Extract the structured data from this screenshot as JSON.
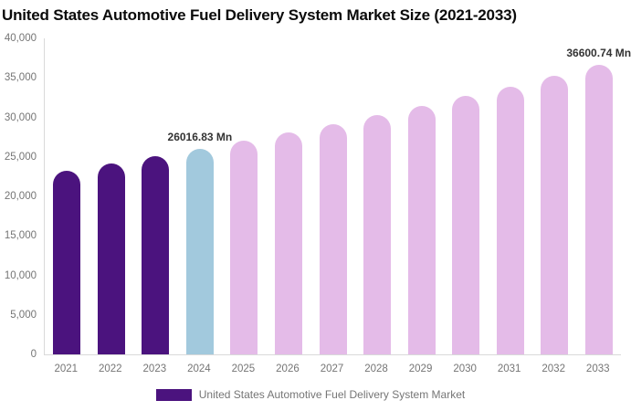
{
  "title": "United States Automotive Fuel Delivery System Market Size (2021-2033)",
  "legend": {
    "label": "United States Automotive Fuel Delivery System Market",
    "swatch_color": "#4B137E"
  },
  "colors": {
    "historical_bar": "#4B137E",
    "current_year_bar": "#A2C9DD",
    "forecast_bar": "#E4BBE8",
    "axis_line": "#D9D9D9",
    "axis_text": "#757575",
    "value_label_text": "#333333",
    "title_text": "#0B0B0B"
  },
  "chart_data": {
    "type": "bar",
    "title": "United States Automotive Fuel Delivery System Market Size (2021-2033)",
    "unit": "Mn",
    "categories": [
      "2021",
      "2022",
      "2023",
      "2024",
      "2025",
      "2026",
      "2027",
      "2028",
      "2029",
      "2030",
      "2031",
      "2032",
      "2033"
    ],
    "values": [
      23219,
      24116,
      25048,
      26016.83,
      27023,
      28067,
      29152,
      30280,
      31450,
      32666,
      33929,
      35241,
      36600.74
    ],
    "bar_colors": [
      "#4B137E",
      "#4B137E",
      "#4B137E",
      "#A2C9DD",
      "#E4BBE8",
      "#E4BBE8",
      "#E4BBE8",
      "#E4BBE8",
      "#E4BBE8",
      "#E4BBE8",
      "#E4BBE8",
      "#E4BBE8",
      "#E4BBE8"
    ],
    "annotations": [
      {
        "category": "2024",
        "text": "26016.83 Mn"
      },
      {
        "category": "2033",
        "text": "36600.74 Mn"
      }
    ],
    "xlabel": "",
    "ylabel": "",
    "ylim": [
      0,
      40000
    ],
    "yticks": [
      {
        "value": 40000,
        "label": "40,000"
      },
      {
        "value": 35000,
        "label": "35,000"
      },
      {
        "value": 30000,
        "label": "30,000"
      },
      {
        "value": 25000,
        "label": "25,000"
      },
      {
        "value": 20000,
        "label": "20,000"
      },
      {
        "value": 15000,
        "label": "15,000"
      },
      {
        "value": 10000,
        "label": "10,000"
      },
      {
        "value": 5000,
        "label": "5,000"
      },
      {
        "value": 0,
        "label": "0"
      }
    ],
    "grid": false,
    "legend_position": "bottom"
  }
}
